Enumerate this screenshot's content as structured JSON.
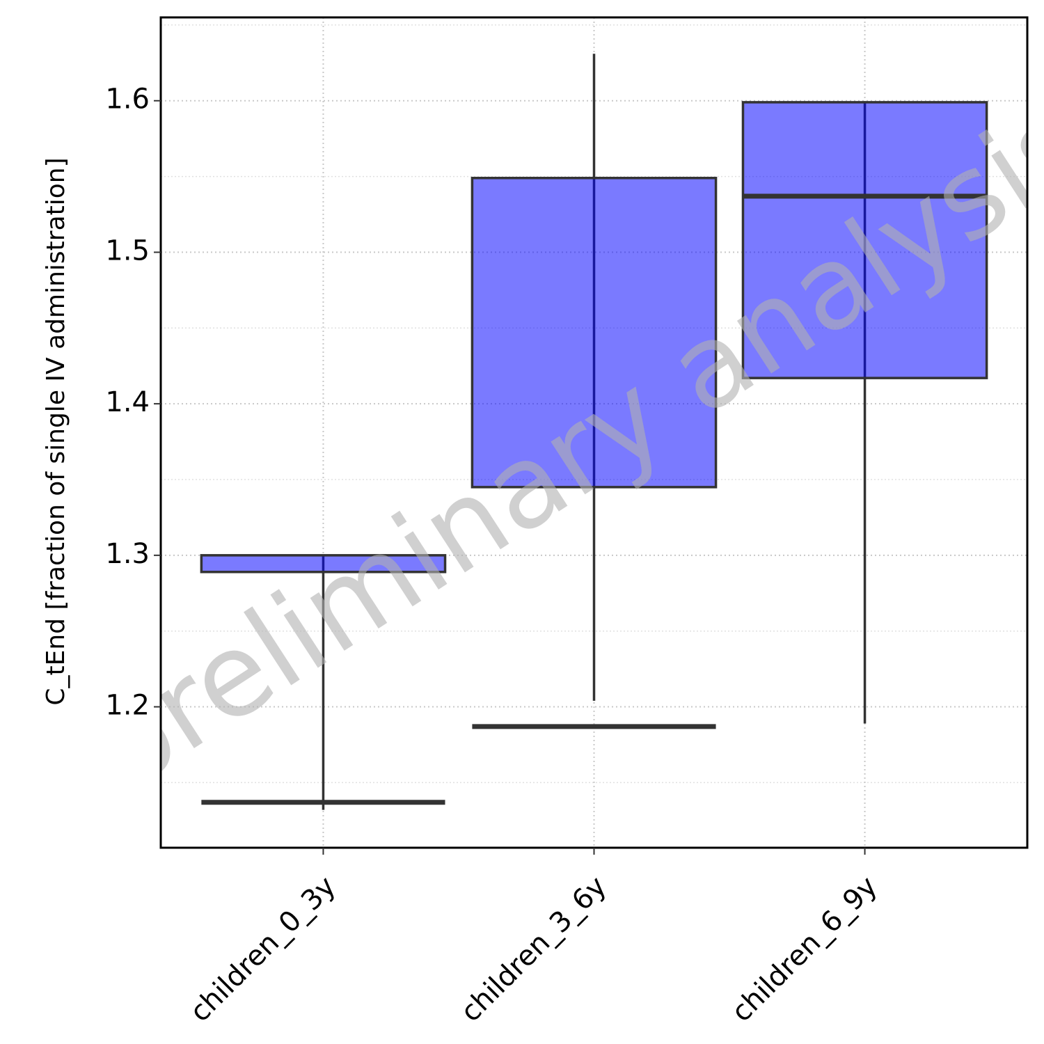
{
  "chart_data": {
    "type": "box",
    "ylabel": "C_tEnd [fraction of single IV administration]",
    "watermark": "preliminary analysis",
    "categories": [
      "children_0_3y",
      "children_3_6y",
      "children_6_9y"
    ],
    "boxes": {
      "whisker_low": [
        1.132,
        1.204,
        1.189
      ],
      "q1": [
        1.289,
        1.345,
        1.417
      ],
      "median": [
        1.137,
        1.187,
        1.537
      ],
      "q3": [
        1.3,
        1.549,
        1.599
      ],
      "whisker_high": [
        1.3,
        1.631,
        1.599
      ]
    },
    "color": "#0000ff",
    "alpha": 0.52,
    "ylim": [
      1.107,
      1.655
    ],
    "yticks": [
      1.2,
      1.3,
      1.4,
      1.5,
      1.6
    ],
    "yminor": [
      1.15,
      1.25,
      1.35,
      1.45,
      1.55,
      1.65
    ],
    "grid": true
  }
}
